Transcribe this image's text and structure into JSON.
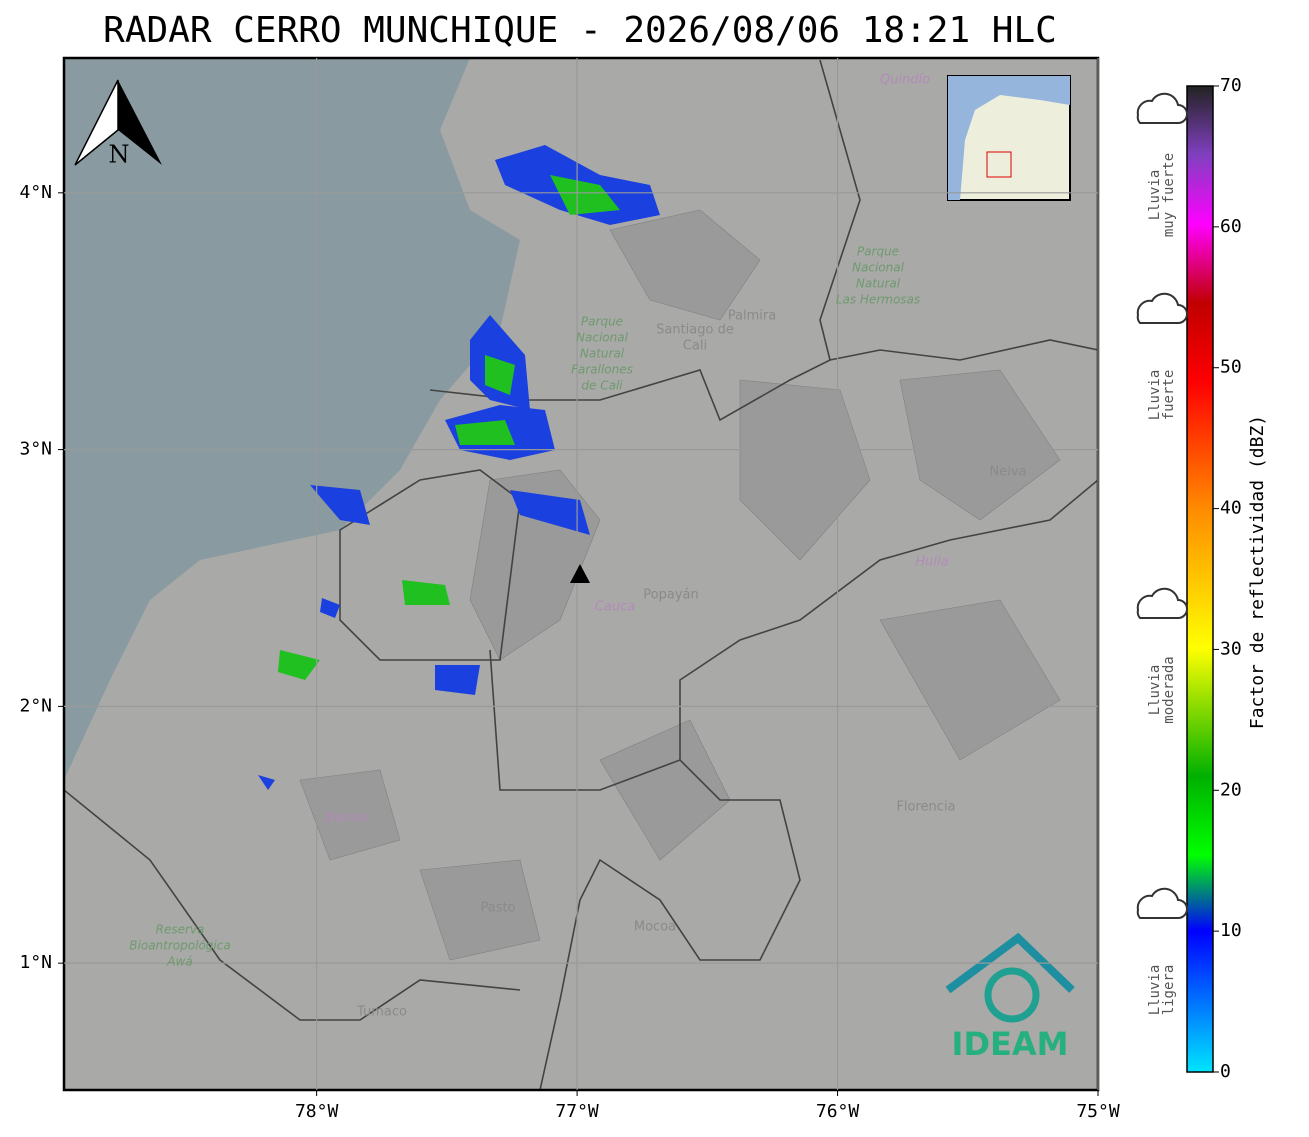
{
  "map": {
    "title": "RADAR CERRO MUNCHIQUE - 2026/08/06 18:21 HLC",
    "xlim": [
      -78.97,
      -75
    ],
    "ylim": [
      0.506,
      4.525
    ],
    "xticks": [
      {
        "value": -78,
        "label": "78°W"
      },
      {
        "value": -77,
        "label": "77°W"
      },
      {
        "value": -76,
        "label": "76°W"
      },
      {
        "value": -75,
        "label": "75°W"
      }
    ],
    "yticks": [
      {
        "value": 1,
        "label": "1°N"
      },
      {
        "value": 2,
        "label": "2°N"
      },
      {
        "value": 3,
        "label": "3°N"
      },
      {
        "value": 4,
        "label": "4°N"
      }
    ],
    "grid": true,
    "north": "N",
    "logo": "IDEAM",
    "places": [
      [
        "Santiago de",
        "Cali"
      ],
      [
        "Palmira"
      ],
      [
        "Parque",
        "Nacional",
        "Natural",
        "Farallones",
        "de Cali"
      ],
      [
        "Parque",
        "Nacional",
        "Natural",
        "Las Hermosas"
      ],
      [
        "Popayán"
      ],
      [
        "Cauca"
      ],
      [
        "Huila"
      ],
      [
        "Neiva"
      ],
      [
        "Nariño"
      ],
      [
        "Pasto"
      ],
      [
        "Mocoa"
      ],
      [
        "Florencia"
      ],
      [
        "Reserva",
        "Bioantropológica",
        "Awá"
      ],
      [
        "Tumaco"
      ],
      [
        "Quindío"
      ]
    ]
  },
  "colorbar": {
    "label": "Factor de reflectividad (dBZ)",
    "lim": [
      0,
      70
    ],
    "ticks": [
      0,
      10,
      20,
      30,
      40,
      50,
      60,
      70
    ],
    "categories": [
      [
        "Lluvia",
        "muy fuerte"
      ],
      [
        "Lluvia",
        "fuerte"
      ],
      [
        "Lluvia",
        "moderada"
      ],
      [
        "Lluvia",
        "ligera"
      ]
    ]
  }
}
